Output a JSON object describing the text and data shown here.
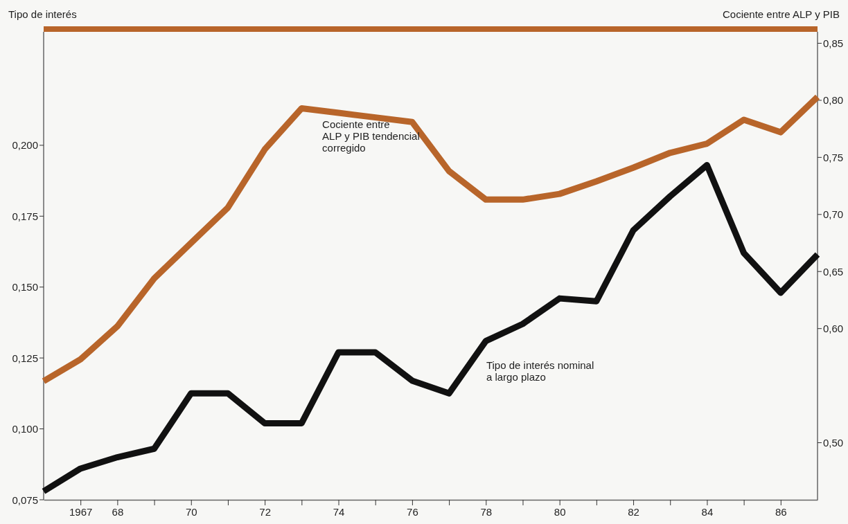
{
  "chart_data": {
    "type": "line",
    "ylabel": "Tipo de interés",
    "y2label": "Cociente entre ALP y PIB",
    "x": [
      1966,
      1967,
      1968,
      1969,
      1970,
      1971,
      1972,
      1973,
      1974,
      1975,
      1976,
      1977,
      1978,
      1979,
      1980,
      1981,
      1982,
      1983,
      1984,
      1985,
      1986,
      1987
    ],
    "series": [
      {
        "name": "Cociente entre\nALP y PIB tendencial\ncorregido",
        "color": "#b8652a",
        "axis": "y2",
        "values": [
          0.554,
          0.573,
          0.602,
          0.644,
          0.675,
          0.706,
          0.757,
          0.793,
          0.789,
          0.785,
          0.781,
          0.738,
          0.713,
          0.713,
          0.718,
          0.729,
          0.741,
          0.754,
          0.762,
          0.783,
          0.772,
          0.803
        ]
      },
      {
        "name": "Tipo de interés nominal\na largo plazo",
        "color": "#111111",
        "values": [
          0.078,
          0.086,
          0.09,
          0.093,
          0.1125,
          0.1125,
          0.102,
          0.102,
          0.127,
          0.127,
          0.117,
          0.1125,
          0.131,
          0.137,
          0.146,
          0.145,
          0.17,
          0.182,
          0.193,
          0.162,
          0.148,
          0.1615
        ]
      }
    ],
    "xlim": [
      1966,
      1987
    ],
    "xticks": [
      {
        "value": 1967,
        "label": "1967"
      },
      {
        "value": 1968,
        "label": "68"
      },
      {
        "value": 1969,
        "label": null
      },
      {
        "value": 1970,
        "label": "70"
      },
      {
        "value": 1971,
        "label": null
      },
      {
        "value": 1972,
        "label": "72"
      },
      {
        "value": 1973,
        "label": null
      },
      {
        "value": 1974,
        "label": "74"
      },
      {
        "value": 1975,
        "label": null
      },
      {
        "value": 1976,
        "label": "76"
      },
      {
        "value": 1977,
        "label": null
      },
      {
        "value": 1978,
        "label": "78"
      },
      {
        "value": 1979,
        "label": null
      },
      {
        "value": 1980,
        "label": "80"
      },
      {
        "value": 1981,
        "label": null
      },
      {
        "value": 1982,
        "label": "82"
      },
      {
        "value": 1983,
        "label": null
      },
      {
        "value": 1984,
        "label": "84"
      },
      {
        "value": 1985,
        "label": null
      },
      {
        "value": 1986,
        "label": "86"
      }
    ],
    "ylim": [
      0.075,
      0.24
    ],
    "yticks": [
      {
        "value": 0.075,
        "label": "0,075"
      },
      {
        "value": 0.1,
        "label": "0,100"
      },
      {
        "value": 0.125,
        "label": "0,125"
      },
      {
        "value": 0.15,
        "label": "0,150"
      },
      {
        "value": 0.175,
        "label": "0,175"
      },
      {
        "value": 0.2,
        "label": "0,200"
      }
    ],
    "y2lim": [
      0.45,
      0.86
    ],
    "y2ticks": [
      {
        "value": 0.5,
        "label": "0,50"
      },
      {
        "value": 0.6,
        "label": "0,60"
      },
      {
        "value": 0.65,
        "label": "0,65"
      },
      {
        "value": 0.7,
        "label": "0,70"
      },
      {
        "value": 0.75,
        "label": "0,75"
      },
      {
        "value": 0.8,
        "label": "0,80"
      },
      {
        "value": 0.85,
        "label": "0,85"
      }
    ],
    "grid": false,
    "legend": false,
    "marker": "none",
    "line_style": "solid"
  }
}
